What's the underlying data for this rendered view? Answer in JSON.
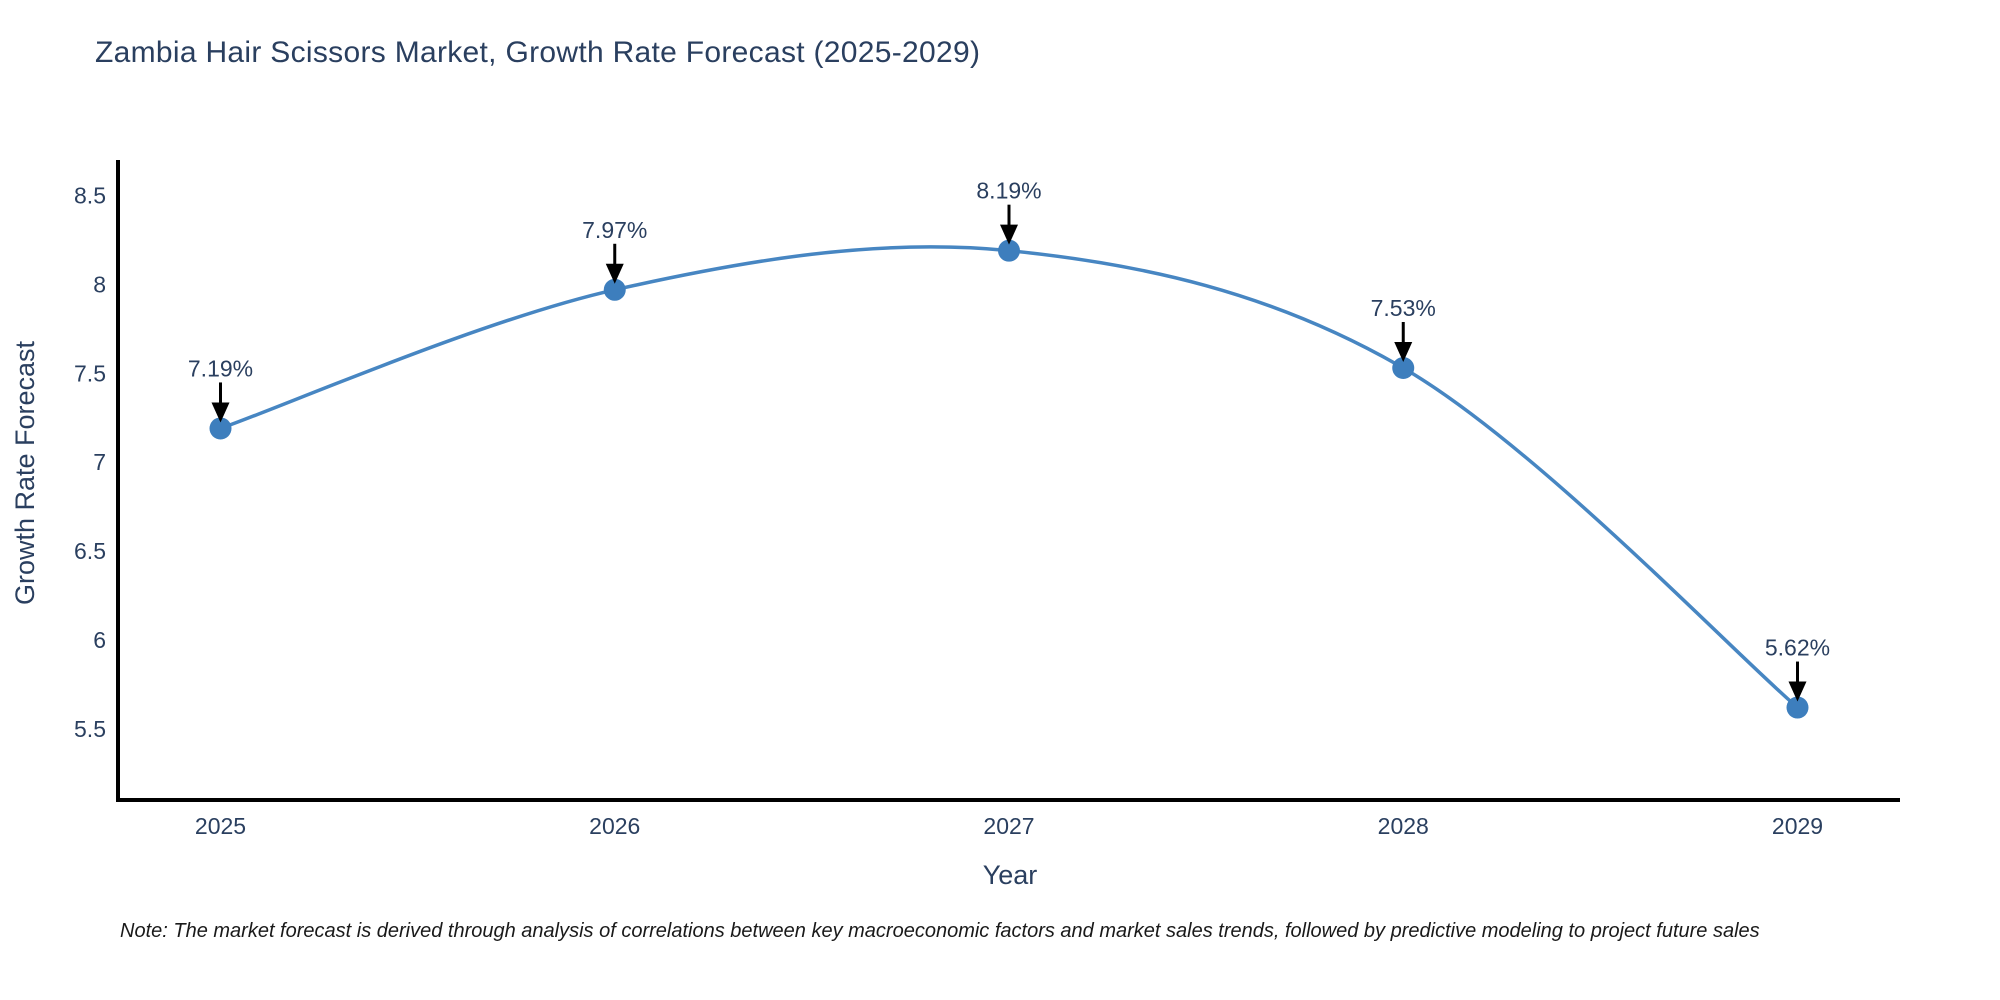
{
  "title": "Zambia Hair Scissors Market, Growth Rate Forecast (2025-2029)",
  "note": "Note: The market forecast is derived through analysis of correlations between key macroeconomic factors and market sales trends, followed by predictive modeling to project future sales",
  "chart_data": {
    "type": "line",
    "title": "Zambia Hair Scissors Market, Growth Rate Forecast (2025-2029)",
    "categories": [
      "2025",
      "2026",
      "2027",
      "2028",
      "2029"
    ],
    "x": [
      2025,
      2026,
      2027,
      2028,
      2029
    ],
    "values": [
      7.19,
      7.97,
      8.19,
      7.53,
      5.62
    ],
    "point_labels": [
      "7.19%",
      "7.97%",
      "8.19%",
      "7.53%",
      "5.62%"
    ],
    "xlabel": "Year",
    "ylabel": "Growth Rate Forecast",
    "ytick_labels": [
      "8.5",
      "8",
      "7.5",
      "7",
      "6.5",
      "6",
      "5.5"
    ],
    "yticks": [
      8.5,
      8.0,
      7.5,
      7.0,
      6.5,
      6.0,
      5.5
    ],
    "xlim": [
      2024.74,
      2029.26
    ],
    "ylim": [
      5.1,
      8.7
    ],
    "grid": false,
    "smooth": true,
    "legend": "none",
    "colors": {
      "line": "#4786c2",
      "marker": "#3d7ebd",
      "text": "#2a3f5f",
      "axis": "#000000",
      "arrow": "#000000"
    }
  }
}
